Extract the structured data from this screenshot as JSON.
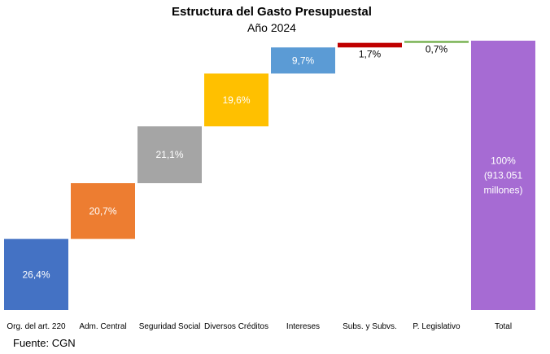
{
  "chart_data": {
    "type": "bar",
    "title": "Estructura del Gasto Presupuestal",
    "subtitle": "Año 2024",
    "categories": [
      "Org. del art. 220",
      "Adm. Central",
      "Seguridad Social",
      "Diversos Créditos",
      "Intereses",
      "Subs. y Subvs.",
      "P. Legislativo",
      "Total"
    ],
    "values": [
      26.4,
      20.7,
      21.1,
      19.6,
      9.7,
      1.7,
      0.7,
      100
    ],
    "data_labels": [
      "26,4%",
      "20,7%",
      "21,1%",
      "19,6%",
      "9,7%",
      "1,7%",
      "0,7%",
      "100% (913.051 millones)"
    ],
    "colors": [
      "#4472C4",
      "#ED7D31",
      "#A5A5A5",
      "#FFC000",
      "#5B9BD5",
      "#C00000",
      "#70AD47",
      "#A66BD3"
    ],
    "ylim": [
      0,
      100
    ],
    "grid": false,
    "legend": "none"
  },
  "source": "Fuente: CGN"
}
